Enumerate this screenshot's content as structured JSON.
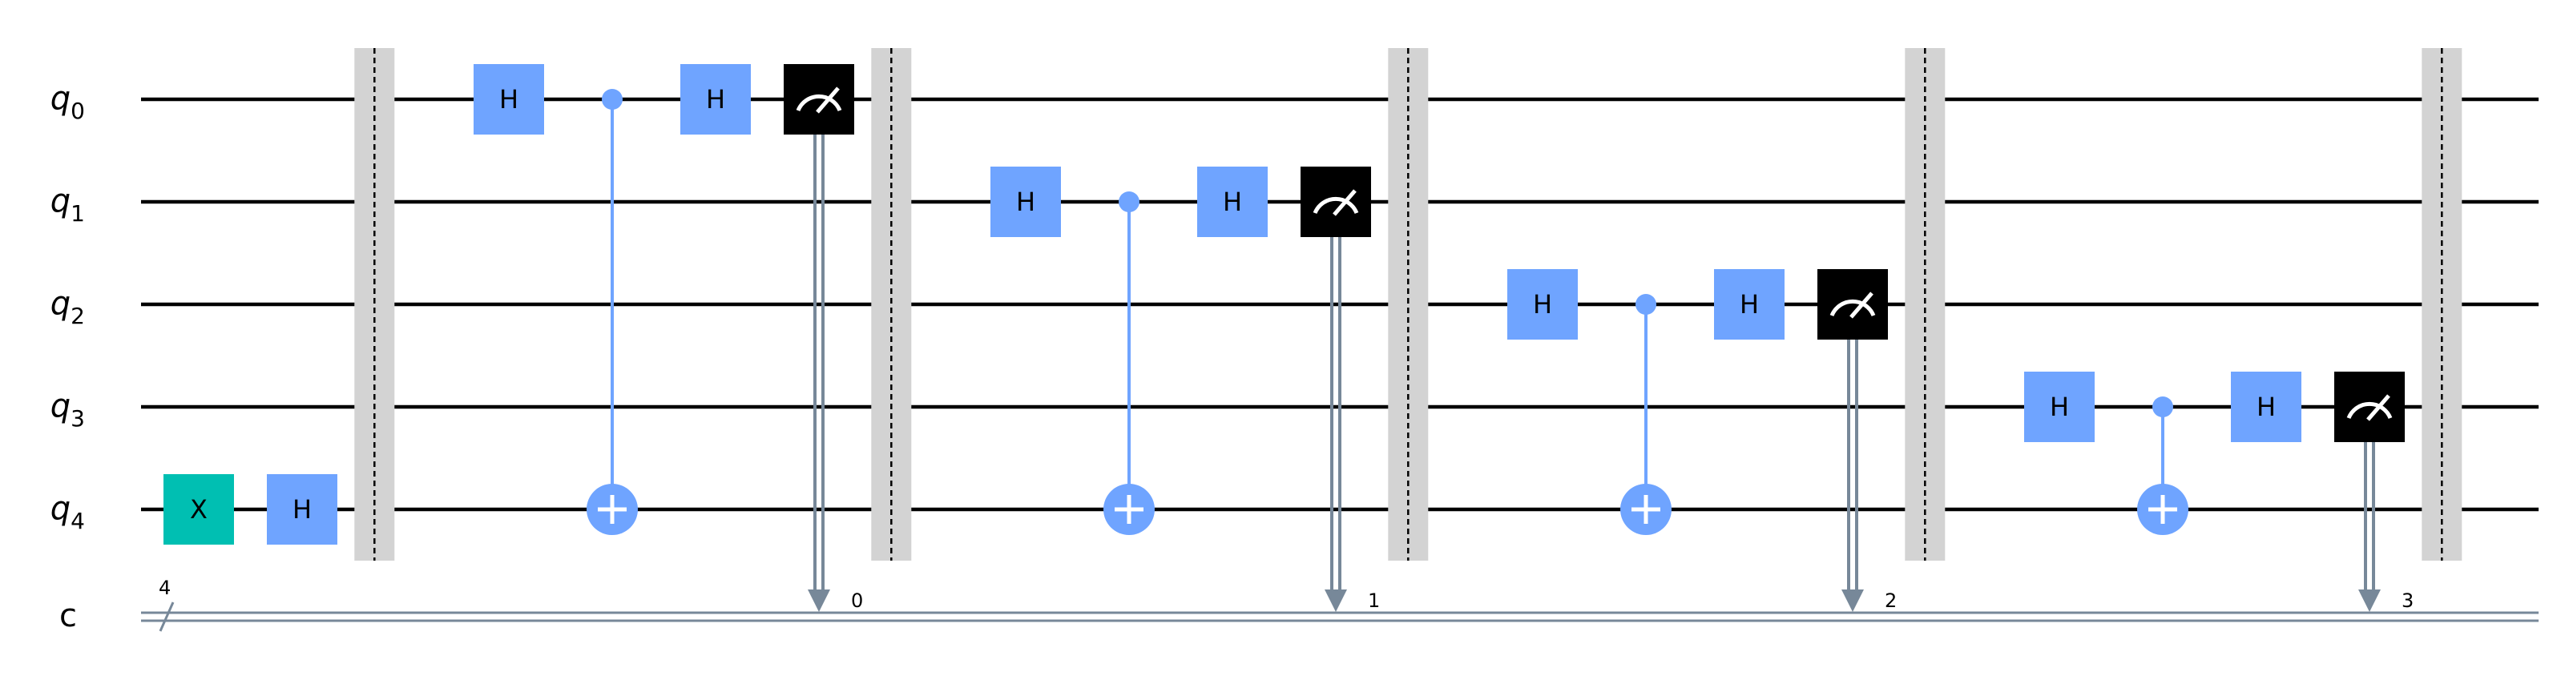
{
  "colors": {
    "h_gate": "#6fa4ff",
    "x_gate": "#00bfb2",
    "control": "#6fa4ff",
    "measure": "#000000",
    "classical": "#778899",
    "barrier": "#d3d3d3"
  },
  "qubits": [
    {
      "base": "q",
      "sub": "0"
    },
    {
      "base": "q",
      "sub": "1"
    },
    {
      "base": "q",
      "sub": "2"
    },
    {
      "base": "q",
      "sub": "3"
    },
    {
      "base": "q",
      "sub": "4"
    }
  ],
  "classical_register": {
    "label": "c",
    "size": "4"
  },
  "barriers": [
    {
      "col": 1.7
    },
    {
      "col": 6.7
    },
    {
      "col": 11.7
    },
    {
      "col": 16.7
    },
    {
      "col": 21.7
    }
  ],
  "gates": [
    {
      "type": "X",
      "label": "X",
      "qubit": 4,
      "col": 0
    },
    {
      "type": "H",
      "label": "H",
      "qubit": 4,
      "col": 1
    },
    {
      "type": "H",
      "label": "H",
      "qubit": 0,
      "col": 3
    },
    {
      "type": "H",
      "label": "H",
      "qubit": 0,
      "col": 5
    },
    {
      "type": "H",
      "label": "H",
      "qubit": 1,
      "col": 8
    },
    {
      "type": "H",
      "label": "H",
      "qubit": 1,
      "col": 10
    },
    {
      "type": "H",
      "label": "H",
      "qubit": 2,
      "col": 13
    },
    {
      "type": "H",
      "label": "H",
      "qubit": 2,
      "col": 15
    },
    {
      "type": "H",
      "label": "H",
      "qubit": 3,
      "col": 18
    },
    {
      "type": "H",
      "label": "H",
      "qubit": 3,
      "col": 20
    }
  ],
  "cnots": [
    {
      "control": 0,
      "target": 4,
      "col": 4
    },
    {
      "control": 1,
      "target": 4,
      "col": 9
    },
    {
      "control": 2,
      "target": 4,
      "col": 14
    },
    {
      "control": 3,
      "target": 4,
      "col": 19
    }
  ],
  "measurements": [
    {
      "qubit": 0,
      "col": 6,
      "bit": "0"
    },
    {
      "qubit": 1,
      "col": 11,
      "bit": "1"
    },
    {
      "qubit": 2,
      "col": 16,
      "bit": "2"
    },
    {
      "qubit": 3,
      "col": 21,
      "bit": "3"
    }
  ]
}
